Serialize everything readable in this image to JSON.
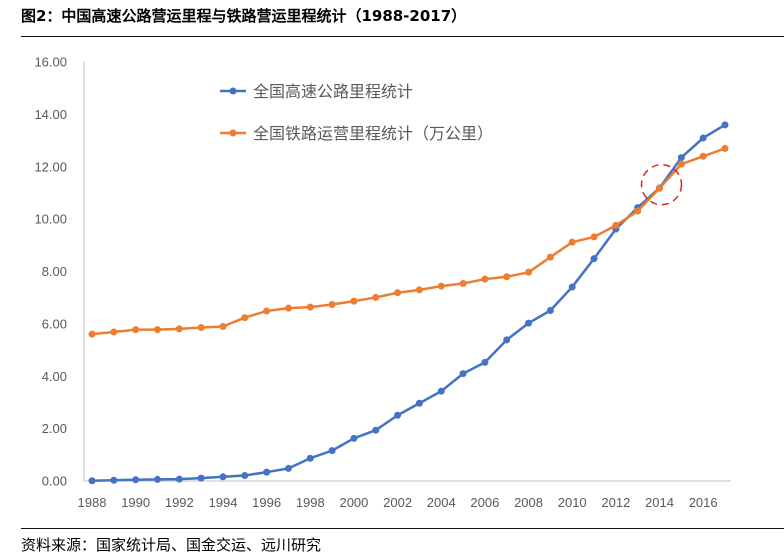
{
  "figure": {
    "title": "图2：中国高速公路营运里程与铁路营运里程统计（1988-2017）",
    "source": "资料来源：国家统计局、国金交运、远川研究"
  },
  "chart_data": {
    "type": "line",
    "x": [
      1988,
      1989,
      1990,
      1991,
      1992,
      1993,
      1994,
      1995,
      1996,
      1997,
      1998,
      1999,
      2000,
      2001,
      2002,
      2003,
      2004,
      2005,
      2006,
      2007,
      2008,
      2009,
      2010,
      2011,
      2012,
      2013,
      2014,
      2015,
      2016,
      2017
    ],
    "x_tick_labels": [
      "1988",
      "1990",
      "1992",
      "1994",
      "1996",
      "1998",
      "2000",
      "2002",
      "2004",
      "2006",
      "2008",
      "2010",
      "2012",
      "2014",
      "2016"
    ],
    "y_tick_labels": [
      "0.00",
      "2.00",
      "4.00",
      "6.00",
      "8.00",
      "10.00",
      "12.00",
      "14.00",
      "16.00"
    ],
    "ylim": [
      0,
      16
    ],
    "xlim": [
      1988,
      2017
    ],
    "grid": false,
    "legend_position": "top-left",
    "series": [
      {
        "name": "全国高速公路里程统计",
        "color": "#4472C4",
        "values": [
          0.01,
          0.03,
          0.05,
          0.06,
          0.07,
          0.11,
          0.16,
          0.21,
          0.34,
          0.48,
          0.87,
          1.16,
          1.63,
          1.94,
          2.51,
          2.97,
          3.43,
          4.1,
          4.53,
          5.39,
          6.03,
          6.51,
          7.41,
          8.49,
          9.62,
          10.44,
          11.19,
          12.35,
          13.1,
          13.6
        ]
      },
      {
        "name": "全国铁路运营里程统计（万公里）",
        "color": "#ED7D31",
        "values": [
          5.61,
          5.69,
          5.78,
          5.78,
          5.81,
          5.86,
          5.9,
          6.24,
          6.49,
          6.6,
          6.64,
          6.74,
          6.87,
          7.01,
          7.19,
          7.3,
          7.44,
          7.54,
          7.71,
          7.8,
          7.97,
          8.55,
          9.12,
          9.32,
          9.76,
          10.31,
          11.18,
          12.1,
          12.4,
          12.7
        ]
      }
    ],
    "annotation": {
      "type": "dashed-circle",
      "x": 2014,
      "y": 11.2,
      "color": "#E02020"
    }
  }
}
